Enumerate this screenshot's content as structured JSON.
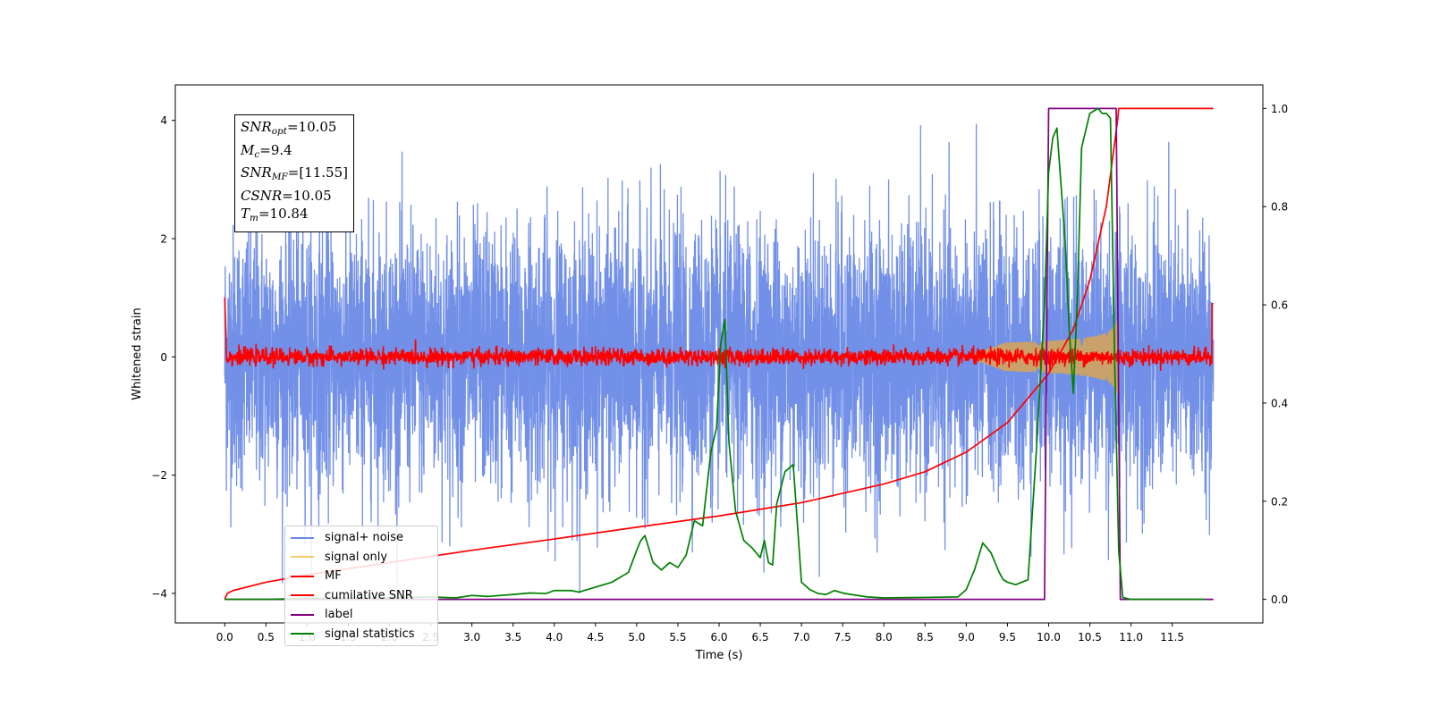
{
  "chart_data": {
    "type": "line",
    "xlabel": "Time (s)",
    "ylabel": "Whitened strain",
    "xlim": [
      -0.6,
      12.6
    ],
    "ylim": [
      -4.5,
      4.6
    ],
    "y2lim": [
      -0.048,
      1.048
    ],
    "x_ticks": [
      "0.0",
      "0.5",
      "1.0",
      "1.5",
      "2.0",
      "2.5",
      "3.0",
      "3.5",
      "4.0",
      "4.5",
      "5.0",
      "5.5",
      "6.0",
      "6.5",
      "7.0",
      "7.5",
      "8.0",
      "8.5",
      "9.0",
      "9.5",
      "10.0",
      "10.5",
      "11.0",
      "11.5"
    ],
    "y_ticks": [
      "4",
      "2",
      "0",
      "−2",
      "−4"
    ],
    "y2_ticks": [
      "1.0",
      "0.8",
      "0.6",
      "0.4",
      "0.2",
      "0.0"
    ],
    "annotation": {
      "snr_opt": "=10.05",
      "mc": "=9.4",
      "snr_mf": "=[11.55]",
      "csnr": "=10.05",
      "tm": "=10.84"
    },
    "legend": {
      "placement": "lower-left",
      "entries": [
        {
          "label": "signal+ noise",
          "color": "#6a8ae6"
        },
        {
          "label": "signal only",
          "color": "#f7c96e"
        },
        {
          "label": "MF",
          "color": "#ff0000"
        },
        {
          "label": "cumilative SNR",
          "color": "#ff0000"
        },
        {
          "label": "label",
          "color": "#800080"
        },
        {
          "label": "signal statistics",
          "color": "#008000"
        }
      ]
    },
    "series": [
      {
        "name": "signal+ noise",
        "axis": "left",
        "x_range": [
          0,
          12.0
        ],
        "noise_sigma": 1.1,
        "color": "#6a8ae6"
      },
      {
        "name": "signal only",
        "axis": "left",
        "x_range": [
          9.0,
          10.84
        ],
        "amplitude_end": 0.7,
        "color": "#c8a26a"
      },
      {
        "name": "MF",
        "axis": "left",
        "x_range": [
          0,
          12.0
        ],
        "noise_sigma": 0.07,
        "color": "#ff0000"
      },
      {
        "name": "cumilative SNR",
        "axis": "right",
        "x": [
          0.0,
          0.03,
          0.1,
          0.5,
          1.0,
          2.0,
          3.0,
          4.0,
          5.0,
          6.0,
          7.0,
          8.0,
          8.5,
          9.0,
          9.5,
          10.0,
          10.3,
          10.5,
          10.7,
          10.84,
          10.85,
          12.0
        ],
        "y": [
          0.0,
          0.012,
          0.018,
          0.035,
          0.05,
          0.075,
          0.1,
          0.123,
          0.147,
          0.17,
          0.197,
          0.235,
          0.26,
          0.3,
          0.36,
          0.46,
          0.55,
          0.65,
          0.8,
          0.98,
          1.0,
          1.0
        ],
        "color": "#ff0000"
      },
      {
        "name": "label",
        "axis": "right",
        "x": [
          0.0,
          9.95,
          10.0,
          10.82,
          10.87,
          12.0
        ],
        "y": [
          0.0,
          0.0,
          1.0,
          1.0,
          0.0,
          0.0
        ],
        "color": "#800080"
      },
      {
        "name": "signal statistics",
        "axis": "right",
        "x": [
          0.0,
          0.5,
          1.0,
          1.5,
          2.0,
          2.5,
          2.8,
          3.0,
          3.2,
          3.5,
          3.7,
          3.9,
          4.0,
          4.2,
          4.3,
          4.5,
          4.7,
          4.9,
          5.0,
          5.05,
          5.1,
          5.2,
          5.3,
          5.4,
          5.5,
          5.6,
          5.7,
          5.8,
          5.9,
          5.97,
          6.02,
          6.07,
          6.12,
          6.2,
          6.3,
          6.4,
          6.5,
          6.55,
          6.6,
          6.65,
          6.7,
          6.8,
          6.9,
          7.0,
          7.1,
          7.2,
          7.3,
          7.4,
          7.5,
          7.6,
          7.8,
          8.0,
          8.5,
          8.9,
          9.0,
          9.1,
          9.2,
          9.3,
          9.4,
          9.45,
          9.5,
          9.6,
          9.75,
          9.85,
          9.95,
          10.0,
          10.05,
          10.1,
          10.2,
          10.25,
          10.3,
          10.35,
          10.4,
          10.5,
          10.6,
          10.65,
          10.7,
          10.75,
          10.8,
          10.85,
          10.9,
          11.0,
          11.5,
          11.9
        ],
        "y": [
          0.0,
          0.0,
          0.002,
          0.003,
          0.003,
          0.005,
          0.003,
          0.008,
          0.006,
          0.01,
          0.013,
          0.012,
          0.018,
          0.018,
          0.015,
          0.025,
          0.035,
          0.055,
          0.1,
          0.12,
          0.13,
          0.075,
          0.06,
          0.075,
          0.065,
          0.09,
          0.16,
          0.15,
          0.3,
          0.35,
          0.52,
          0.57,
          0.32,
          0.18,
          0.12,
          0.105,
          0.085,
          0.12,
          0.075,
          0.07,
          0.195,
          0.26,
          0.275,
          0.035,
          0.02,
          0.012,
          0.01,
          0.018,
          0.013,
          0.01,
          0.005,
          0.003,
          0.004,
          0.005,
          0.02,
          0.06,
          0.115,
          0.095,
          0.055,
          0.04,
          0.035,
          0.03,
          0.04,
          0.3,
          0.6,
          0.87,
          0.94,
          0.96,
          0.73,
          0.55,
          0.42,
          0.62,
          0.92,
          0.99,
          1.0,
          0.99,
          0.99,
          0.98,
          0.5,
          0.1,
          0.004,
          0.0,
          0.0,
          0.0
        ],
        "color": "#008000"
      }
    ]
  }
}
